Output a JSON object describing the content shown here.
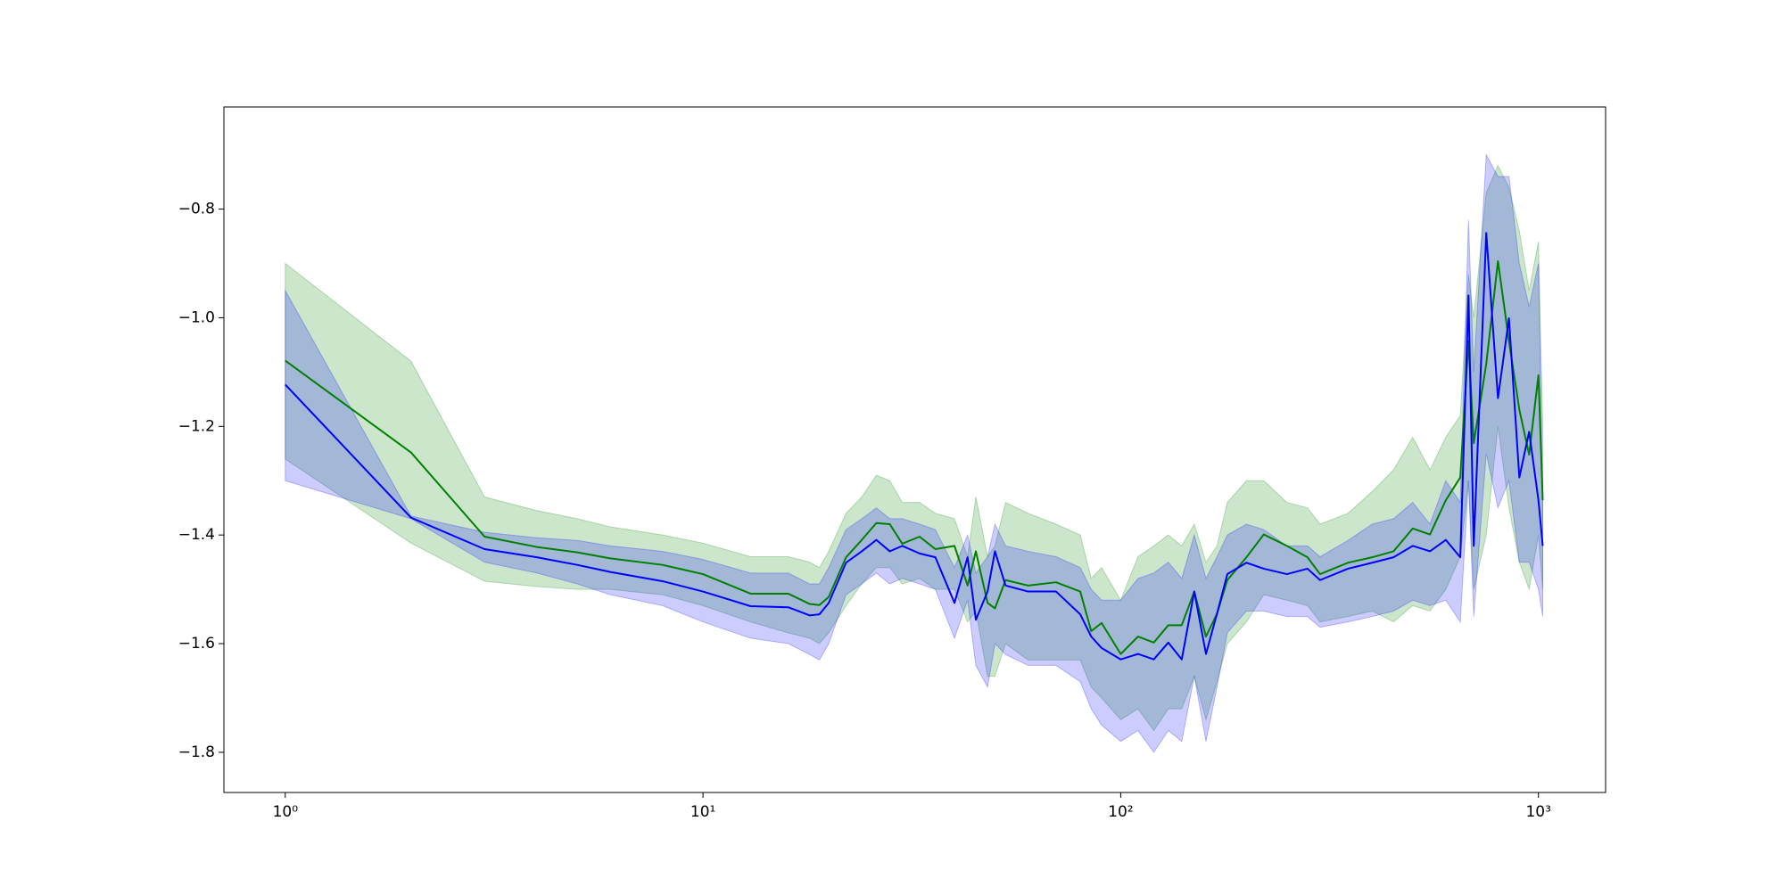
{
  "chart_data": {
    "type": "line",
    "xscale": "log",
    "xlim": [
      0.713,
      1448
    ],
    "ylim": [
      -1.874,
      -0.612
    ],
    "xticks": [
      {
        "value": 1,
        "label": "10⁰"
      },
      {
        "value": 10,
        "label": "10¹"
      },
      {
        "value": 100,
        "label": "10²"
      },
      {
        "value": 1000,
        "label": "10³"
      }
    ],
    "yticks": [
      {
        "value": -0.8,
        "label": "−0.8"
      },
      {
        "value": -1.0,
        "label": "−1.0"
      },
      {
        "value": -1.2,
        "label": "−1.2"
      },
      {
        "value": -1.4,
        "label": "−1.4"
      },
      {
        "value": -1.6,
        "label": "−1.6"
      },
      {
        "value": -1.8,
        "label": "−1.8"
      }
    ],
    "x": [
      1,
      2,
      3,
      4,
      5,
      6,
      8,
      10,
      13,
      16,
      18,
      19,
      20,
      22,
      24,
      26,
      28,
      30,
      33,
      36,
      40,
      43,
      45,
      48,
      50,
      53,
      60,
      70,
      80,
      85,
      90,
      100,
      110,
      120,
      130,
      140,
      150,
      160,
      170,
      180,
      200,
      220,
      250,
      280,
      300,
      350,
      400,
      450,
      500,
      550,
      600,
      650,
      680,
      700,
      750,
      800,
      850,
      900,
      950,
      1000,
      1024
    ],
    "series": [
      {
        "color": "#008000",
        "values": [
          -1.079,
          -1.248,
          -1.403,
          -1.422,
          -1.432,
          -1.443,
          -1.455,
          -1.472,
          -1.508,
          -1.508,
          -1.527,
          -1.529,
          -1.514,
          -1.441,
          -1.409,
          -1.378,
          -1.38,
          -1.416,
          -1.403,
          -1.426,
          -1.42,
          -1.493,
          -1.43,
          -1.525,
          -1.535,
          -1.483,
          -1.493,
          -1.487,
          -1.504,
          -1.577,
          -1.562,
          -1.619,
          -1.587,
          -1.598,
          -1.566,
          -1.566,
          -1.504,
          -1.587,
          -1.545,
          -1.483,
          -1.441,
          -1.399,
          -1.42,
          -1.441,
          -1.472,
          -1.451,
          -1.441,
          -1.43,
          -1.388,
          -1.399,
          -1.336,
          -1.294,
          -1.043,
          -1.231,
          -1.085,
          -0.896,
          -1.043,
          -1.169,
          -1.252,
          -1.106,
          -1.336
        ],
        "upper": [
          -0.9,
          -1.08,
          -1.33,
          -1.355,
          -1.37,
          -1.385,
          -1.4,
          -1.415,
          -1.44,
          -1.44,
          -1.45,
          -1.46,
          -1.43,
          -1.36,
          -1.33,
          -1.29,
          -1.3,
          -1.34,
          -1.34,
          -1.36,
          -1.37,
          -1.44,
          -1.33,
          -1.44,
          -1.42,
          -1.34,
          -1.36,
          -1.38,
          -1.4,
          -1.48,
          -1.46,
          -1.52,
          -1.44,
          -1.42,
          -1.4,
          -1.42,
          -1.38,
          -1.45,
          -1.42,
          -1.34,
          -1.3,
          -1.3,
          -1.34,
          -1.35,
          -1.38,
          -1.36,
          -1.32,
          -1.28,
          -1.22,
          -1.28,
          -1.22,
          -1.18,
          -0.92,
          -1.0,
          -0.77,
          -0.72,
          -0.76,
          -0.84,
          -0.95,
          -0.86,
          -1.2
        ],
        "lower": [
          -1.26,
          -1.415,
          -1.485,
          -1.495,
          -1.5,
          -1.5,
          -1.51,
          -1.53,
          -1.56,
          -1.58,
          -1.59,
          -1.6,
          -1.58,
          -1.53,
          -1.49,
          -1.46,
          -1.46,
          -1.49,
          -1.48,
          -1.5,
          -1.5,
          -1.56,
          -1.54,
          -1.66,
          -1.66,
          -1.6,
          -1.63,
          -1.63,
          -1.63,
          -1.68,
          -1.7,
          -1.74,
          -1.72,
          -1.76,
          -1.72,
          -1.72,
          -1.66,
          -1.74,
          -1.67,
          -1.6,
          -1.56,
          -1.51,
          -1.52,
          -1.53,
          -1.56,
          -1.55,
          -1.54,
          -1.56,
          -1.53,
          -1.54,
          -1.5,
          -1.44,
          -1.3,
          -1.5,
          -1.4,
          -1.2,
          -1.35,
          -1.45,
          -1.5,
          -1.4,
          -1.5
        ]
      },
      {
        "color": "#0000ff",
        "values": [
          -1.123,
          -1.368,
          -1.426,
          -1.441,
          -1.455,
          -1.468,
          -1.485,
          -1.504,
          -1.531,
          -1.533,
          -1.548,
          -1.546,
          -1.525,
          -1.451,
          -1.43,
          -1.409,
          -1.43,
          -1.42,
          -1.434,
          -1.441,
          -1.525,
          -1.441,
          -1.556,
          -1.504,
          -1.43,
          -1.493,
          -1.504,
          -1.504,
          -1.546,
          -1.587,
          -1.608,
          -1.629,
          -1.619,
          -1.629,
          -1.598,
          -1.629,
          -1.504,
          -1.619,
          -1.545,
          -1.472,
          -1.451,
          -1.462,
          -1.472,
          -1.462,
          -1.483,
          -1.462,
          -1.451,
          -1.441,
          -1.42,
          -1.43,
          -1.409,
          -1.441,
          -0.959,
          -1.42,
          -0.844,
          -1.148,
          -1.001,
          -1.294,
          -1.21,
          -1.336,
          -1.42
        ],
        "upper": [
          -0.95,
          -1.365,
          -1.395,
          -1.405,
          -1.41,
          -1.42,
          -1.43,
          -1.445,
          -1.47,
          -1.47,
          -1.49,
          -1.49,
          -1.46,
          -1.39,
          -1.37,
          -1.35,
          -1.37,
          -1.37,
          -1.38,
          -1.39,
          -1.46,
          -1.4,
          -1.47,
          -1.44,
          -1.38,
          -1.42,
          -1.43,
          -1.44,
          -1.46,
          -1.5,
          -1.52,
          -1.52,
          -1.48,
          -1.47,
          -1.45,
          -1.48,
          -1.4,
          -1.48,
          -1.44,
          -1.4,
          -1.38,
          -1.39,
          -1.42,
          -1.42,
          -1.44,
          -1.41,
          -1.38,
          -1.37,
          -1.34,
          -1.38,
          -1.3,
          -1.34,
          -0.82,
          -1.1,
          -0.7,
          -0.74,
          -0.74,
          -0.9,
          -0.98,
          -0.9,
          -1.34
        ],
        "lower": [
          -1.3,
          -1.37,
          -1.45,
          -1.47,
          -1.49,
          -1.51,
          -1.53,
          -1.56,
          -1.59,
          -1.6,
          -1.62,
          -1.63,
          -1.6,
          -1.51,
          -1.49,
          -1.47,
          -1.49,
          -1.48,
          -1.49,
          -1.5,
          -1.59,
          -1.52,
          -1.64,
          -1.68,
          -1.6,
          -1.62,
          -1.64,
          -1.64,
          -1.67,
          -1.72,
          -1.75,
          -1.78,
          -1.76,
          -1.8,
          -1.76,
          -1.78,
          -1.66,
          -1.78,
          -1.68,
          -1.58,
          -1.54,
          -1.54,
          -1.55,
          -1.55,
          -1.57,
          -1.56,
          -1.55,
          -1.54,
          -1.52,
          -1.53,
          -1.52,
          -1.56,
          -1.3,
          -1.55,
          -1.25,
          -1.35,
          -1.3,
          -1.45,
          -1.45,
          -1.5,
          -1.55
        ]
      }
    ]
  }
}
